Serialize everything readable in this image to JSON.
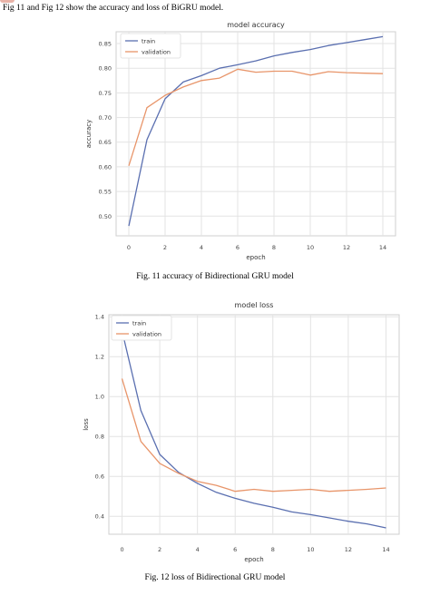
{
  "intro_text": "Fig 11 and Fig 12 show the accuracy and loss of BiGRU model.",
  "captions": {
    "fig11": "Fig. 11 accuracy of Bidirectional GRU model",
    "fig12": "Fig. 12 loss of Bidirectional GRU model"
  },
  "colors": {
    "train": "#5a6fb0",
    "validation": "#e8956a",
    "grid": "#e3e3e3",
    "axis": "#cfcfcf"
  },
  "chart_data": [
    {
      "type": "line",
      "title": "model accuracy",
      "xlabel": "epoch",
      "ylabel": "accuracy",
      "x": [
        0,
        1,
        2,
        3,
        4,
        5,
        6,
        7,
        8,
        9,
        10,
        11,
        12,
        13,
        14
      ],
      "xticks": [
        0,
        2,
        4,
        6,
        8,
        10,
        12,
        14
      ],
      "xlim": [
        -0.7,
        14.7
      ],
      "yticks": [
        0.5,
        0.55,
        0.6,
        0.65,
        0.7,
        0.75,
        0.8,
        0.85
      ],
      "ytick_labels": [
        "0.50",
        "0.55",
        "0.60",
        "0.65",
        "0.70",
        "0.75",
        "0.80",
        "0.85"
      ],
      "ylim": [
        0.46,
        0.874
      ],
      "grid": true,
      "legend": "upper-left",
      "series": [
        {
          "name": "train",
          "values": [
            0.48,
            0.655,
            0.738,
            0.772,
            0.785,
            0.8,
            0.807,
            0.815,
            0.825,
            0.832,
            0.838,
            0.846,
            0.852,
            0.858,
            0.864
          ]
        },
        {
          "name": "validation",
          "values": [
            0.602,
            0.72,
            0.745,
            0.762,
            0.775,
            0.78,
            0.798,
            0.792,
            0.794,
            0.794,
            0.786,
            0.793,
            0.791,
            0.79,
            0.789
          ]
        }
      ]
    },
    {
      "type": "line",
      "title": "model loss",
      "xlabel": "epoch",
      "ylabel": "loss",
      "x": [
        0,
        1,
        2,
        3,
        4,
        5,
        6,
        7,
        8,
        9,
        10,
        11,
        12,
        13,
        14
      ],
      "xticks": [
        0,
        2,
        4,
        6,
        8,
        10,
        12,
        14
      ],
      "xlim": [
        -0.7,
        14.7
      ],
      "yticks": [
        0.4,
        0.6,
        0.8,
        1.0,
        1.2,
        1.4
      ],
      "ytick_labels": [
        "0.4",
        "0.6",
        "0.8",
        "1.0",
        "1.2",
        "1.4"
      ],
      "ylim": [
        0.31,
        1.41
      ],
      "grid": true,
      "legend": "upper-left",
      "series": [
        {
          "name": "train",
          "values": [
            1.33,
            0.93,
            0.71,
            0.62,
            0.565,
            0.52,
            0.49,
            0.465,
            0.445,
            0.422,
            0.408,
            0.392,
            0.375,
            0.362,
            0.342
          ]
        },
        {
          "name": "validation",
          "values": [
            1.09,
            0.775,
            0.665,
            0.615,
            0.575,
            0.555,
            0.525,
            0.535,
            0.525,
            0.53,
            0.535,
            0.525,
            0.53,
            0.535,
            0.542
          ]
        }
      ]
    }
  ]
}
